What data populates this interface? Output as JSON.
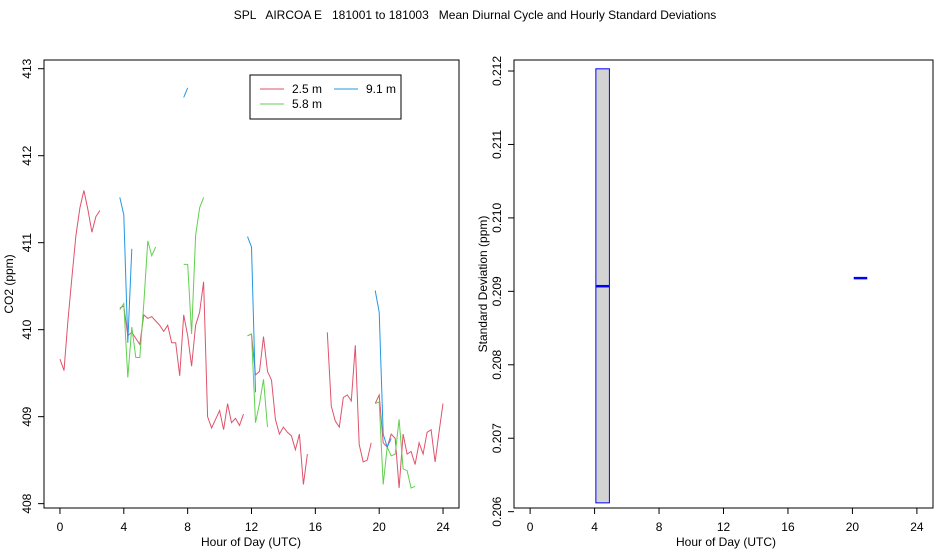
{
  "title": "SPL   AIRCOA E   181001 to 181003   Mean Diurnal Cycle and Hourly Standard Deviations",
  "chart_data": [
    {
      "type": "line",
      "xlabel": "Hour of Day (UTC)",
      "ylabel": "CO2 (ppm)",
      "xlim": [
        -1,
        25
      ],
      "ylim": [
        407.95,
        413.1
      ],
      "xticks": [
        0,
        4,
        8,
        12,
        16,
        20,
        24
      ],
      "yticks": [
        408,
        409,
        410,
        411,
        412,
        413
      ],
      "legend_position": "top-right",
      "series": [
        {
          "name": "2.5 m",
          "color": "#DF536B",
          "segments": [
            [
              [
                0,
                409.66
              ],
              [
                0.25,
                409.53
              ],
              [
                0.5,
                410.1
              ],
              [
                0.75,
                410.6
              ],
              [
                1.0,
                411.08
              ],
              [
                1.25,
                411.4
              ],
              [
                1.5,
                411.6
              ],
              [
                1.75,
                411.38
              ],
              [
                2.0,
                411.12
              ],
              [
                2.25,
                411.3
              ],
              [
                2.5,
                411.37
              ]
            ],
            [
              [
                3.75,
                410.25
              ],
              [
                4.0,
                410.27
              ],
              [
                4.25,
                409.93
              ],
              [
                4.5,
                409.97
              ],
              [
                4.75,
                409.9
              ],
              [
                5.0,
                409.83
              ],
              [
                5.25,
                410.17
              ],
              [
                5.5,
                410.13
              ],
              [
                5.75,
                410.15
              ],
              [
                6.0,
                410.1
              ],
              [
                6.25,
                410.05
              ],
              [
                6.5,
                409.98
              ],
              [
                6.75,
                410.05
              ],
              [
                7.0,
                409.85
              ],
              [
                7.25,
                409.85
              ],
              [
                7.5,
                409.47
              ],
              [
                7.75,
                410.17
              ],
              [
                8.0,
                409.93
              ],
              [
                8.25,
                409.58
              ],
              [
                8.5,
                410.05
              ],
              [
                8.75,
                410.2
              ],
              [
                9.0,
                410.55
              ],
              [
                9.25,
                409.0
              ],
              [
                9.5,
                408.87
              ],
              [
                9.75,
                408.97
              ],
              [
                10.0,
                409.07
              ],
              [
                10.25,
                408.85
              ],
              [
                10.5,
                409.15
              ],
              [
                10.75,
                408.93
              ],
              [
                11.0,
                408.98
              ],
              [
                11.25,
                408.9
              ],
              [
                11.5,
                409.03
              ]
            ],
            [
              [
                11.75,
                409.93
              ],
              [
                12.0,
                409.95
              ],
              [
                12.25,
                409.48
              ],
              [
                12.5,
                409.52
              ],
              [
                12.75,
                409.92
              ],
              [
                13.0,
                409.52
              ],
              [
                13.25,
                409.42
              ],
              [
                13.5,
                408.97
              ],
              [
                13.75,
                408.8
              ],
              [
                14.0,
                408.88
              ],
              [
                14.25,
                408.82
              ],
              [
                14.5,
                408.78
              ],
              [
                14.75,
                408.62
              ],
              [
                15.0,
                408.8
              ],
              [
                15.25,
                408.22
              ],
              [
                15.5,
                408.57
              ]
            ],
            [
              [
                16.75,
                409.97
              ],
              [
                17.0,
                409.12
              ],
              [
                17.25,
                408.95
              ],
              [
                17.5,
                408.88
              ],
              [
                17.75,
                409.22
              ],
              [
                18.0,
                409.25
              ],
              [
                18.25,
                409.18
              ],
              [
                18.5,
                409.82
              ],
              [
                18.75,
                408.68
              ],
              [
                19.0,
                408.48
              ],
              [
                19.25,
                408.5
              ],
              [
                19.5,
                408.7
              ]
            ],
            [
              [
                19.75,
                409.15
              ],
              [
                20.0,
                409.25
              ],
              [
                20.25,
                408.7
              ],
              [
                20.5,
                408.65
              ],
              [
                20.75,
                408.8
              ],
              [
                21.0,
                408.75
              ],
              [
                21.25,
                408.18
              ],
              [
                21.5,
                408.8
              ],
              [
                21.75,
                408.57
              ],
              [
                22.0,
                408.6
              ],
              [
                22.25,
                408.45
              ],
              [
                22.5,
                408.7
              ],
              [
                22.75,
                408.57
              ],
              [
                23.0,
                408.82
              ],
              [
                23.25,
                408.85
              ],
              [
                23.5,
                408.48
              ],
              [
                23.75,
                408.82
              ],
              [
                24.0,
                409.15
              ]
            ]
          ]
        },
        {
          "name": "5.8 m",
          "color": "#61D04F",
          "segments": [
            [
              [
                3.75,
                410.23
              ],
              [
                4.0,
                410.3
              ],
              [
                4.25,
                409.45
              ],
              [
                4.5,
                410.03
              ],
              [
                4.75,
                409.68
              ],
              [
                5.0,
                409.68
              ],
              [
                5.25,
                410.3
              ],
              [
                5.5,
                411.02
              ],
              [
                5.75,
                410.85
              ],
              [
                6.0,
                410.95
              ]
            ],
            [
              [
                7.75,
                410.75
              ],
              [
                8.0,
                410.75
              ],
              [
                8.25,
                409.95
              ],
              [
                8.5,
                411.08
              ],
              [
                8.75,
                411.4
              ],
              [
                9.0,
                411.52
              ]
            ],
            [
              [
                11.75,
                409.93
              ],
              [
                12.0,
                409.95
              ],
              [
                12.25,
                408.93
              ],
              [
                12.5,
                409.15
              ],
              [
                12.75,
                409.43
              ],
              [
                13.0,
                408.88
              ]
            ],
            [
              [
                19.75,
                409.15
              ],
              [
                20.0,
                409.17
              ],
              [
                20.25,
                408.22
              ],
              [
                20.5,
                408.65
              ],
              [
                20.75,
                408.55
              ],
              [
                21.0,
                408.57
              ],
              [
                21.25,
                408.97
              ],
              [
                21.5,
                408.4
              ],
              [
                21.75,
                408.38
              ],
              [
                22.0,
                408.18
              ],
              [
                22.25,
                408.2
              ]
            ]
          ]
        },
        {
          "name": "9.1 m",
          "color": "#2297E6",
          "segments": [
            [
              [
                3.75,
                411.52
              ],
              [
                4.0,
                411.32
              ],
              [
                4.25,
                409.85
              ],
              [
                4.5,
                410.93
              ]
            ],
            [
              [
                7.75,
                412.67
              ],
              [
                8.0,
                412.78
              ]
            ],
            [
              [
                11.75,
                411.07
              ],
              [
                12.0,
                410.95
              ],
              [
                12.25,
                409.28
              ]
            ],
            [
              [
                19.75,
                410.45
              ],
              [
                20.0,
                410.2
              ],
              [
                20.25,
                408.8
              ],
              [
                20.5,
                408.65
              ],
              [
                20.75,
                408.75
              ]
            ]
          ]
        }
      ]
    },
    {
      "type": "bar",
      "subtype": "box",
      "xlabel": "Hour of Day (UTC)",
      "ylabel": "Standard Deviation (ppm)",
      "xlim": [
        -1,
        25
      ],
      "ylim": [
        0.20605,
        0.21215
      ],
      "xticks": [
        0,
        4,
        8,
        12,
        16,
        20,
        24
      ],
      "yticks": [
        0.206,
        0.207,
        0.208,
        0.209,
        0.21,
        0.211,
        0.212
      ],
      "box_color": "#0000FF",
      "fill_color": "#D3D3D3",
      "boxes": [
        {
          "x": 4.5,
          "min": 0.20612,
          "median": 0.20907,
          "max": 0.21203
        },
        {
          "x": 20.5,
          "min": 0.20918,
          "median": 0.20918,
          "max": 0.20918
        }
      ]
    }
  ]
}
